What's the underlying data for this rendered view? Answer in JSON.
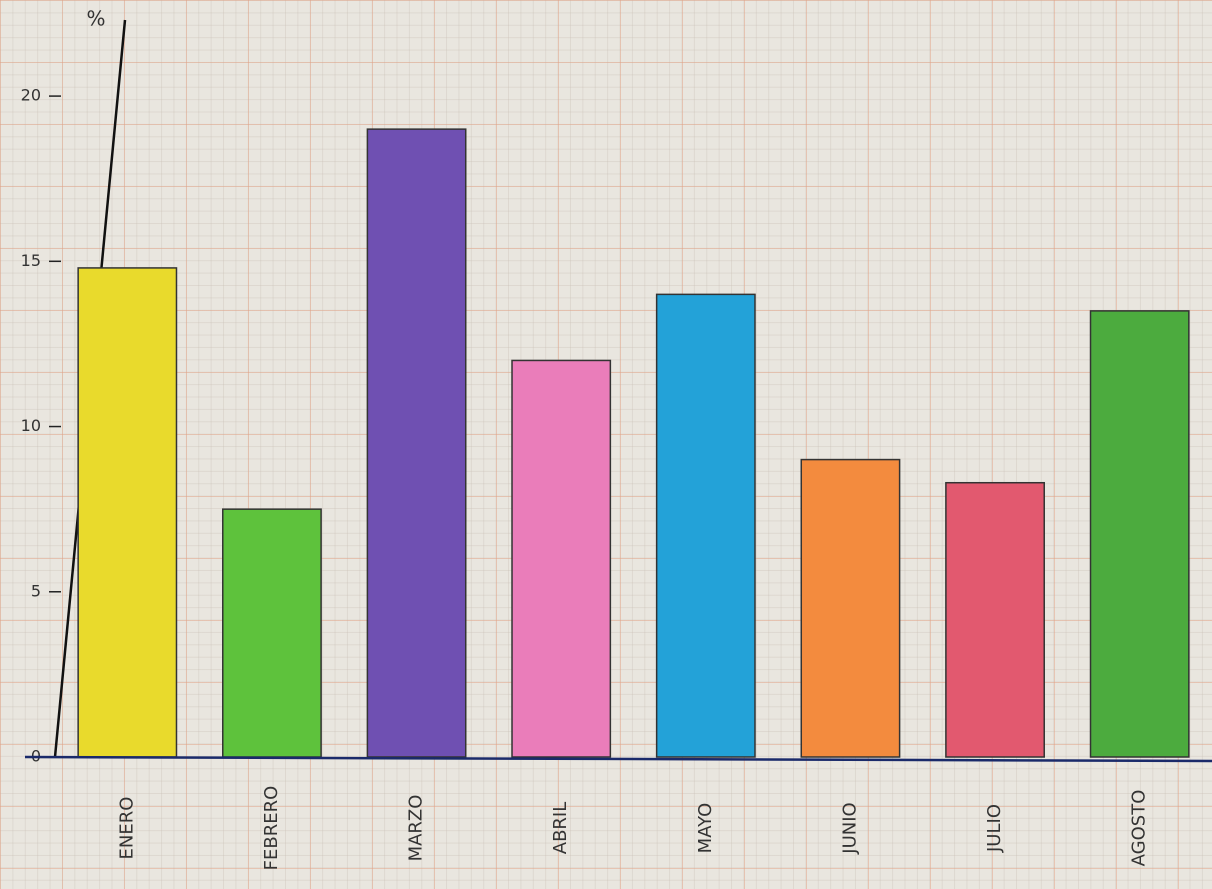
{
  "chart_data": {
    "type": "bar",
    "y_label": "%",
    "categories": [
      "ENERO",
      "FEBRERO",
      "MARZO",
      "ABRIL",
      "MAYO",
      "JUNIO",
      "JULIO",
      "AGOSTO"
    ],
    "values": [
      14.8,
      7.5,
      19,
      12,
      14,
      9,
      8.3,
      13.5
    ],
    "colors": [
      "#e9da2c",
      "#5ec23c",
      "#6f50b2",
      "#ea7dba",
      "#23a2d8",
      "#f38b3e",
      "#e2596f",
      "#4cab3e"
    ],
    "ylim": [
      0,
      22
    ],
    "yticks": [
      0,
      5,
      10,
      15,
      20
    ]
  }
}
